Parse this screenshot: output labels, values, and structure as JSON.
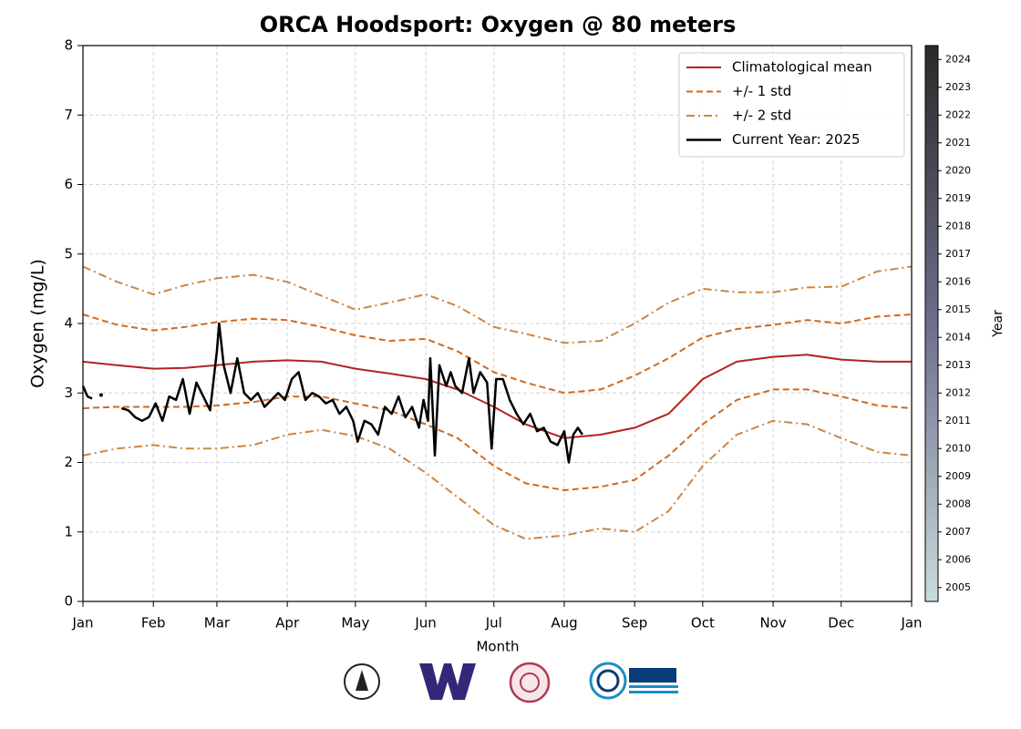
{
  "chart_data": {
    "type": "line",
    "title": "ORCA Hoodsport: Oxygen @ 80 meters",
    "xlabel": "Month",
    "ylabel": "Oxygen (mg/L)",
    "xlim": [
      0,
      365
    ],
    "ylim": [
      0,
      8
    ],
    "xticks": [
      {
        "value": 0,
        "label": "Jan"
      },
      {
        "value": 31,
        "label": "Feb"
      },
      {
        "value": 59,
        "label": "Mar"
      },
      {
        "value": 90,
        "label": "Apr"
      },
      {
        "value": 120,
        "label": "May"
      },
      {
        "value": 151,
        "label": "Jun"
      },
      {
        "value": 181,
        "label": "Jul"
      },
      {
        "value": 212,
        "label": "Aug"
      },
      {
        "value": 243,
        "label": "Sep"
      },
      {
        "value": 273,
        "label": "Oct"
      },
      {
        "value": 304,
        "label": "Nov"
      },
      {
        "value": 334,
        "label": "Dec"
      },
      {
        "value": 365,
        "label": "Jan"
      }
    ],
    "yticks": [
      0,
      1,
      2,
      3,
      4,
      5,
      6,
      7,
      8
    ],
    "grid": true,
    "legend": "upper right",
    "x": [
      0,
      15,
      31,
      45,
      59,
      75,
      90,
      105,
      120,
      135,
      151,
      165,
      181,
      195,
      212,
      228,
      243,
      258,
      273,
      288,
      304,
      319,
      334,
      350,
      365
    ],
    "series": [
      {
        "name": "Climatological mean",
        "color": "#b22222",
        "dash": "solid",
        "values": [
          3.45,
          3.4,
          3.35,
          3.36,
          3.4,
          3.45,
          3.47,
          3.45,
          3.35,
          3.28,
          3.2,
          3.05,
          2.8,
          2.55,
          2.35,
          2.4,
          2.5,
          2.7,
          3.2,
          3.45,
          3.52,
          3.55,
          3.48,
          3.45,
          3.45
        ]
      },
      {
        "name": "+/- 1 std",
        "color": "#d2691e",
        "dash": "dashed",
        "upper": [
          4.13,
          3.98,
          3.9,
          3.95,
          4.02,
          4.07,
          4.05,
          3.95,
          3.83,
          3.75,
          3.78,
          3.6,
          3.3,
          3.15,
          3.0,
          3.05,
          3.25,
          3.5,
          3.8,
          3.92,
          3.98,
          4.05,
          4.0,
          4.1,
          4.13
        ],
        "lower": [
          2.78,
          2.8,
          2.8,
          2.8,
          2.82,
          2.87,
          2.95,
          2.95,
          2.85,
          2.75,
          2.55,
          2.35,
          1.95,
          1.7,
          1.6,
          1.65,
          1.75,
          2.1,
          2.55,
          2.9,
          3.05,
          3.05,
          2.95,
          2.82,
          2.78
        ]
      },
      {
        "name": "+/- 2 std",
        "color": "#cd853f",
        "dash": "dashdot",
        "upper": [
          4.82,
          4.6,
          4.42,
          4.55,
          4.65,
          4.7,
          4.6,
          4.4,
          4.2,
          4.3,
          4.42,
          4.25,
          3.95,
          3.85,
          3.72,
          3.75,
          4.0,
          4.3,
          4.5,
          4.45,
          4.45,
          4.52,
          4.53,
          4.75,
          4.82
        ],
        "lower": [
          2.1,
          2.2,
          2.25,
          2.2,
          2.2,
          2.25,
          2.4,
          2.47,
          2.38,
          2.2,
          1.85,
          1.5,
          1.1,
          0.9,
          0.95,
          1.05,
          1.0,
          1.3,
          1.95,
          2.4,
          2.6,
          2.55,
          2.35,
          2.15,
          2.1
        ]
      },
      {
        "name": "Current Year: 2025",
        "color": "#000000",
        "dash": "solid",
        "x": [
          0,
          2,
          4,
          6,
          8,
          12,
          17,
          20,
          23,
          26,
          29,
          32,
          35,
          38,
          41,
          44,
          47,
          50,
          53,
          56,
          59,
          60,
          62,
          65,
          68,
          71,
          74,
          77,
          80,
          83,
          86,
          89,
          92,
          95,
          98,
          101,
          104,
          107,
          110,
          113,
          116,
          119,
          121,
          124,
          127,
          130,
          133,
          136,
          139,
          142,
          145,
          148,
          150,
          152,
          153,
          155,
          157,
          160,
          162,
          164,
          167,
          170,
          172,
          175,
          178,
          180,
          182,
          185,
          188,
          191,
          194,
          197,
          200,
          203,
          206,
          209,
          212,
          214,
          216,
          218,
          220
        ],
        "values": [
          3.1,
          2.95,
          2.92,
          null,
          2.97,
          null,
          2.78,
          2.75,
          2.65,
          2.6,
          2.65,
          2.85,
          2.6,
          2.95,
          2.9,
          3.2,
          2.7,
          3.15,
          2.95,
          2.75,
          3.6,
          4.0,
          3.4,
          3.0,
          3.5,
          3.0,
          2.9,
          3.0,
          2.8,
          2.9,
          3.0,
          2.9,
          3.2,
          3.3,
          2.9,
          3.0,
          2.95,
          2.85,
          2.9,
          2.7,
          2.8,
          2.6,
          2.3,
          2.6,
          2.55,
          2.4,
          2.8,
          2.7,
          2.95,
          2.65,
          2.8,
          2.5,
          2.9,
          2.6,
          3.5,
          2.1,
          3.4,
          3.1,
          3.3,
          3.1,
          3.0,
          3.5,
          3.0,
          3.3,
          3.15,
          2.2,
          3.2,
          3.2,
          2.9,
          2.7,
          2.55,
          2.7,
          2.45,
          2.5,
          2.3,
          2.25,
          2.45,
          2.0,
          2.4,
          2.5,
          2.4
        ]
      }
    ],
    "colorbar": {
      "label": "Year",
      "range": [
        2004.5,
        2024.5
      ],
      "colors": [
        "#c8dcdc",
        "#6e6e8c",
        "#2a2a2a"
      ],
      "ticks": [
        2005,
        2006,
        2007,
        2008,
        2009,
        2010,
        2011,
        2012,
        2013,
        2014,
        2015,
        2016,
        2017,
        2018,
        2019,
        2020,
        2021,
        2022,
        2023,
        2024
      ]
    }
  }
}
